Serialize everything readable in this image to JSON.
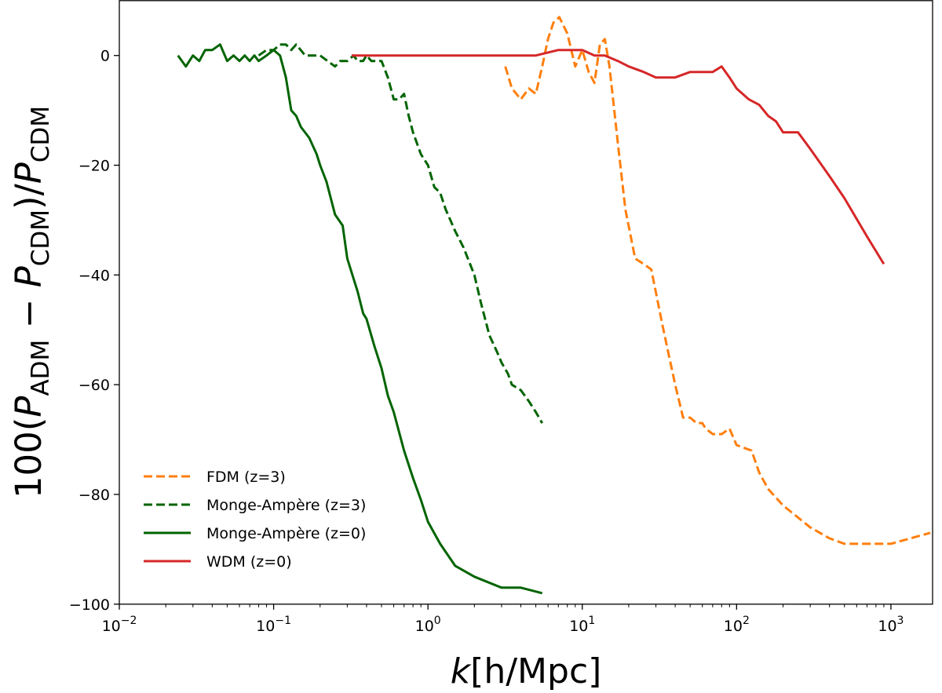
{
  "chart_data": {
    "type": "line",
    "title": "",
    "xlabel": {
      "italic": "k",
      "rest": "[h/Mpc]"
    },
    "ylabel": {
      "prefix": "100(",
      "p1": "P",
      "sub1": "ADM",
      "minus": " − ",
      "p2": "P",
      "sub2": "CDM",
      "mid": ")/",
      "p3": "P",
      "sub3": "CDM"
    },
    "xscale": "log",
    "xlim_log10": [
      -2,
      3.27
    ],
    "ylim": [
      -100,
      10
    ],
    "grid": false,
    "legend_position": "lower-left",
    "x_ticks": [
      {
        "base": "10",
        "exp": "−2"
      },
      {
        "base": "10",
        "exp": "−1"
      },
      {
        "base": "10",
        "exp": "0"
      },
      {
        "base": "10",
        "exp": "1"
      },
      {
        "base": "10",
        "exp": "2"
      },
      {
        "base": "10",
        "exp": "3"
      }
    ],
    "y_ticks": [
      "0",
      "−20",
      "−40",
      "−60",
      "−80",
      "−100"
    ],
    "series": [
      {
        "name": "FDM (z=3)",
        "color": "#ff7f0e",
        "dash": true,
        "x": [
          3.17,
          3.5,
          4.0,
          4.5,
          5.0,
          5.5,
          6.0,
          6.5,
          7.1,
          8.0,
          9.0,
          10.0,
          11.0,
          12.0,
          13.0,
          14.0,
          15.0,
          17.0,
          19.0,
          22.0,
          25.0,
          28.0,
          33.0,
          36.0,
          40.0,
          45.0,
          50.0,
          55.0,
          60.0,
          63.0,
          70.0,
          80.0,
          90.0,
          100.0,
          125.0,
          140.0,
          160.0,
          200.0,
          300.0,
          400.0,
          500.0,
          794.0,
          1000.0,
          1800.0
        ],
        "y": [
          -2,
          -6,
          -8,
          -6,
          -7,
          -2,
          3,
          6,
          7,
          4,
          -2,
          1,
          -3,
          -5,
          2,
          3,
          -2,
          -16,
          -28,
          -37,
          -38,
          -39,
          -49,
          -54,
          -60,
          -66,
          -66,
          -67,
          -67,
          -68,
          -69,
          -69,
          -68,
          -71,
          -72,
          -76,
          -79,
          -82,
          -86,
          -88,
          -89,
          -89,
          -89,
          -87
        ]
      },
      {
        "name": "Monge-Ampère (z=3)",
        "color": "#006400",
        "dash": true,
        "x": [
          0.08,
          0.09,
          0.1,
          0.11,
          0.12,
          0.13,
          0.14,
          0.16,
          0.2,
          0.25,
          0.27,
          0.3,
          0.33,
          0.35,
          0.38,
          0.4,
          0.43,
          0.45,
          0.5,
          0.55,
          0.6,
          0.65,
          0.7,
          0.75,
          0.8,
          0.9,
          1.0,
          1.1,
          1.2,
          1.3,
          1.5,
          1.7,
          2.0,
          2.2,
          2.5,
          2.8,
          3.0,
          3.3,
          3.5,
          4.0,
          4.5,
          5.0,
          5.5
        ],
        "y": [
          0,
          1,
          1,
          2,
          2,
          1,
          2,
          0,
          0,
          -2,
          -1,
          -1,
          0,
          -1,
          -1,
          0,
          -1,
          -1,
          -1,
          -4,
          -8,
          -8,
          -7,
          -11,
          -14,
          -18,
          -20,
          -24,
          -25,
          -28,
          -32,
          -35,
          -40,
          -45,
          -51,
          -54,
          -56,
          -58,
          -60,
          -61,
          -63,
          -65,
          -67
        ]
      },
      {
        "name": "Monge-Ampère (z=0)",
        "color": "#006400",
        "dash": false,
        "x": [
          0.024,
          0.027,
          0.03,
          0.033,
          0.036,
          0.04,
          0.045,
          0.05,
          0.055,
          0.06,
          0.065,
          0.07,
          0.075,
          0.08,
          0.09,
          0.1,
          0.11,
          0.12,
          0.13,
          0.14,
          0.15,
          0.17,
          0.19,
          0.2,
          0.22,
          0.25,
          0.28,
          0.3,
          0.35,
          0.38,
          0.4,
          0.45,
          0.5,
          0.55,
          0.6,
          0.7,
          0.8,
          0.9,
          1.0,
          1.2,
          1.5,
          2.0,
          3.0,
          4.0,
          5.5
        ],
        "y": [
          0,
          -2,
          0,
          -1,
          1,
          1,
          2,
          -1,
          0,
          -1,
          0,
          -1,
          0,
          -1,
          0,
          1,
          0,
          -4,
          -10,
          -11,
          -13,
          -15,
          -18,
          -20,
          -23,
          -29,
          -31,
          -37,
          -43,
          -47,
          -48,
          -53,
          -57,
          -62,
          -65,
          -72,
          -77,
          -81,
          -85,
          -89,
          -93,
          -95,
          -97,
          -97,
          -98
        ]
      },
      {
        "name": "WDM (z=0)",
        "color": "#d62728",
        "dash": false,
        "x": [
          0.32,
          0.5,
          0.7,
          1.0,
          1.5,
          2.0,
          3.0,
          4.0,
          5.0,
          7.0,
          10.0,
          12.0,
          14.0,
          17.0,
          20.0,
          25.0,
          30.0,
          40.0,
          50.0,
          60.0,
          70.0,
          80.0,
          90.0,
          100.0,
          120.0,
          140.0,
          160.0,
          180.0,
          200.0,
          250.0,
          300.0,
          400.0,
          500.0,
          700.0,
          900.0
        ],
        "y": [
          0,
          0,
          0,
          0,
          0,
          0,
          0,
          0,
          0,
          1,
          1,
          0,
          0,
          -1,
          -2,
          -3,
          -4,
          -4,
          -3,
          -3,
          -3,
          -2,
          -4,
          -6,
          -8,
          -9,
          -11,
          -12,
          -14,
          -14,
          -17,
          -22,
          -26,
          -33,
          -38
        ]
      }
    ]
  }
}
